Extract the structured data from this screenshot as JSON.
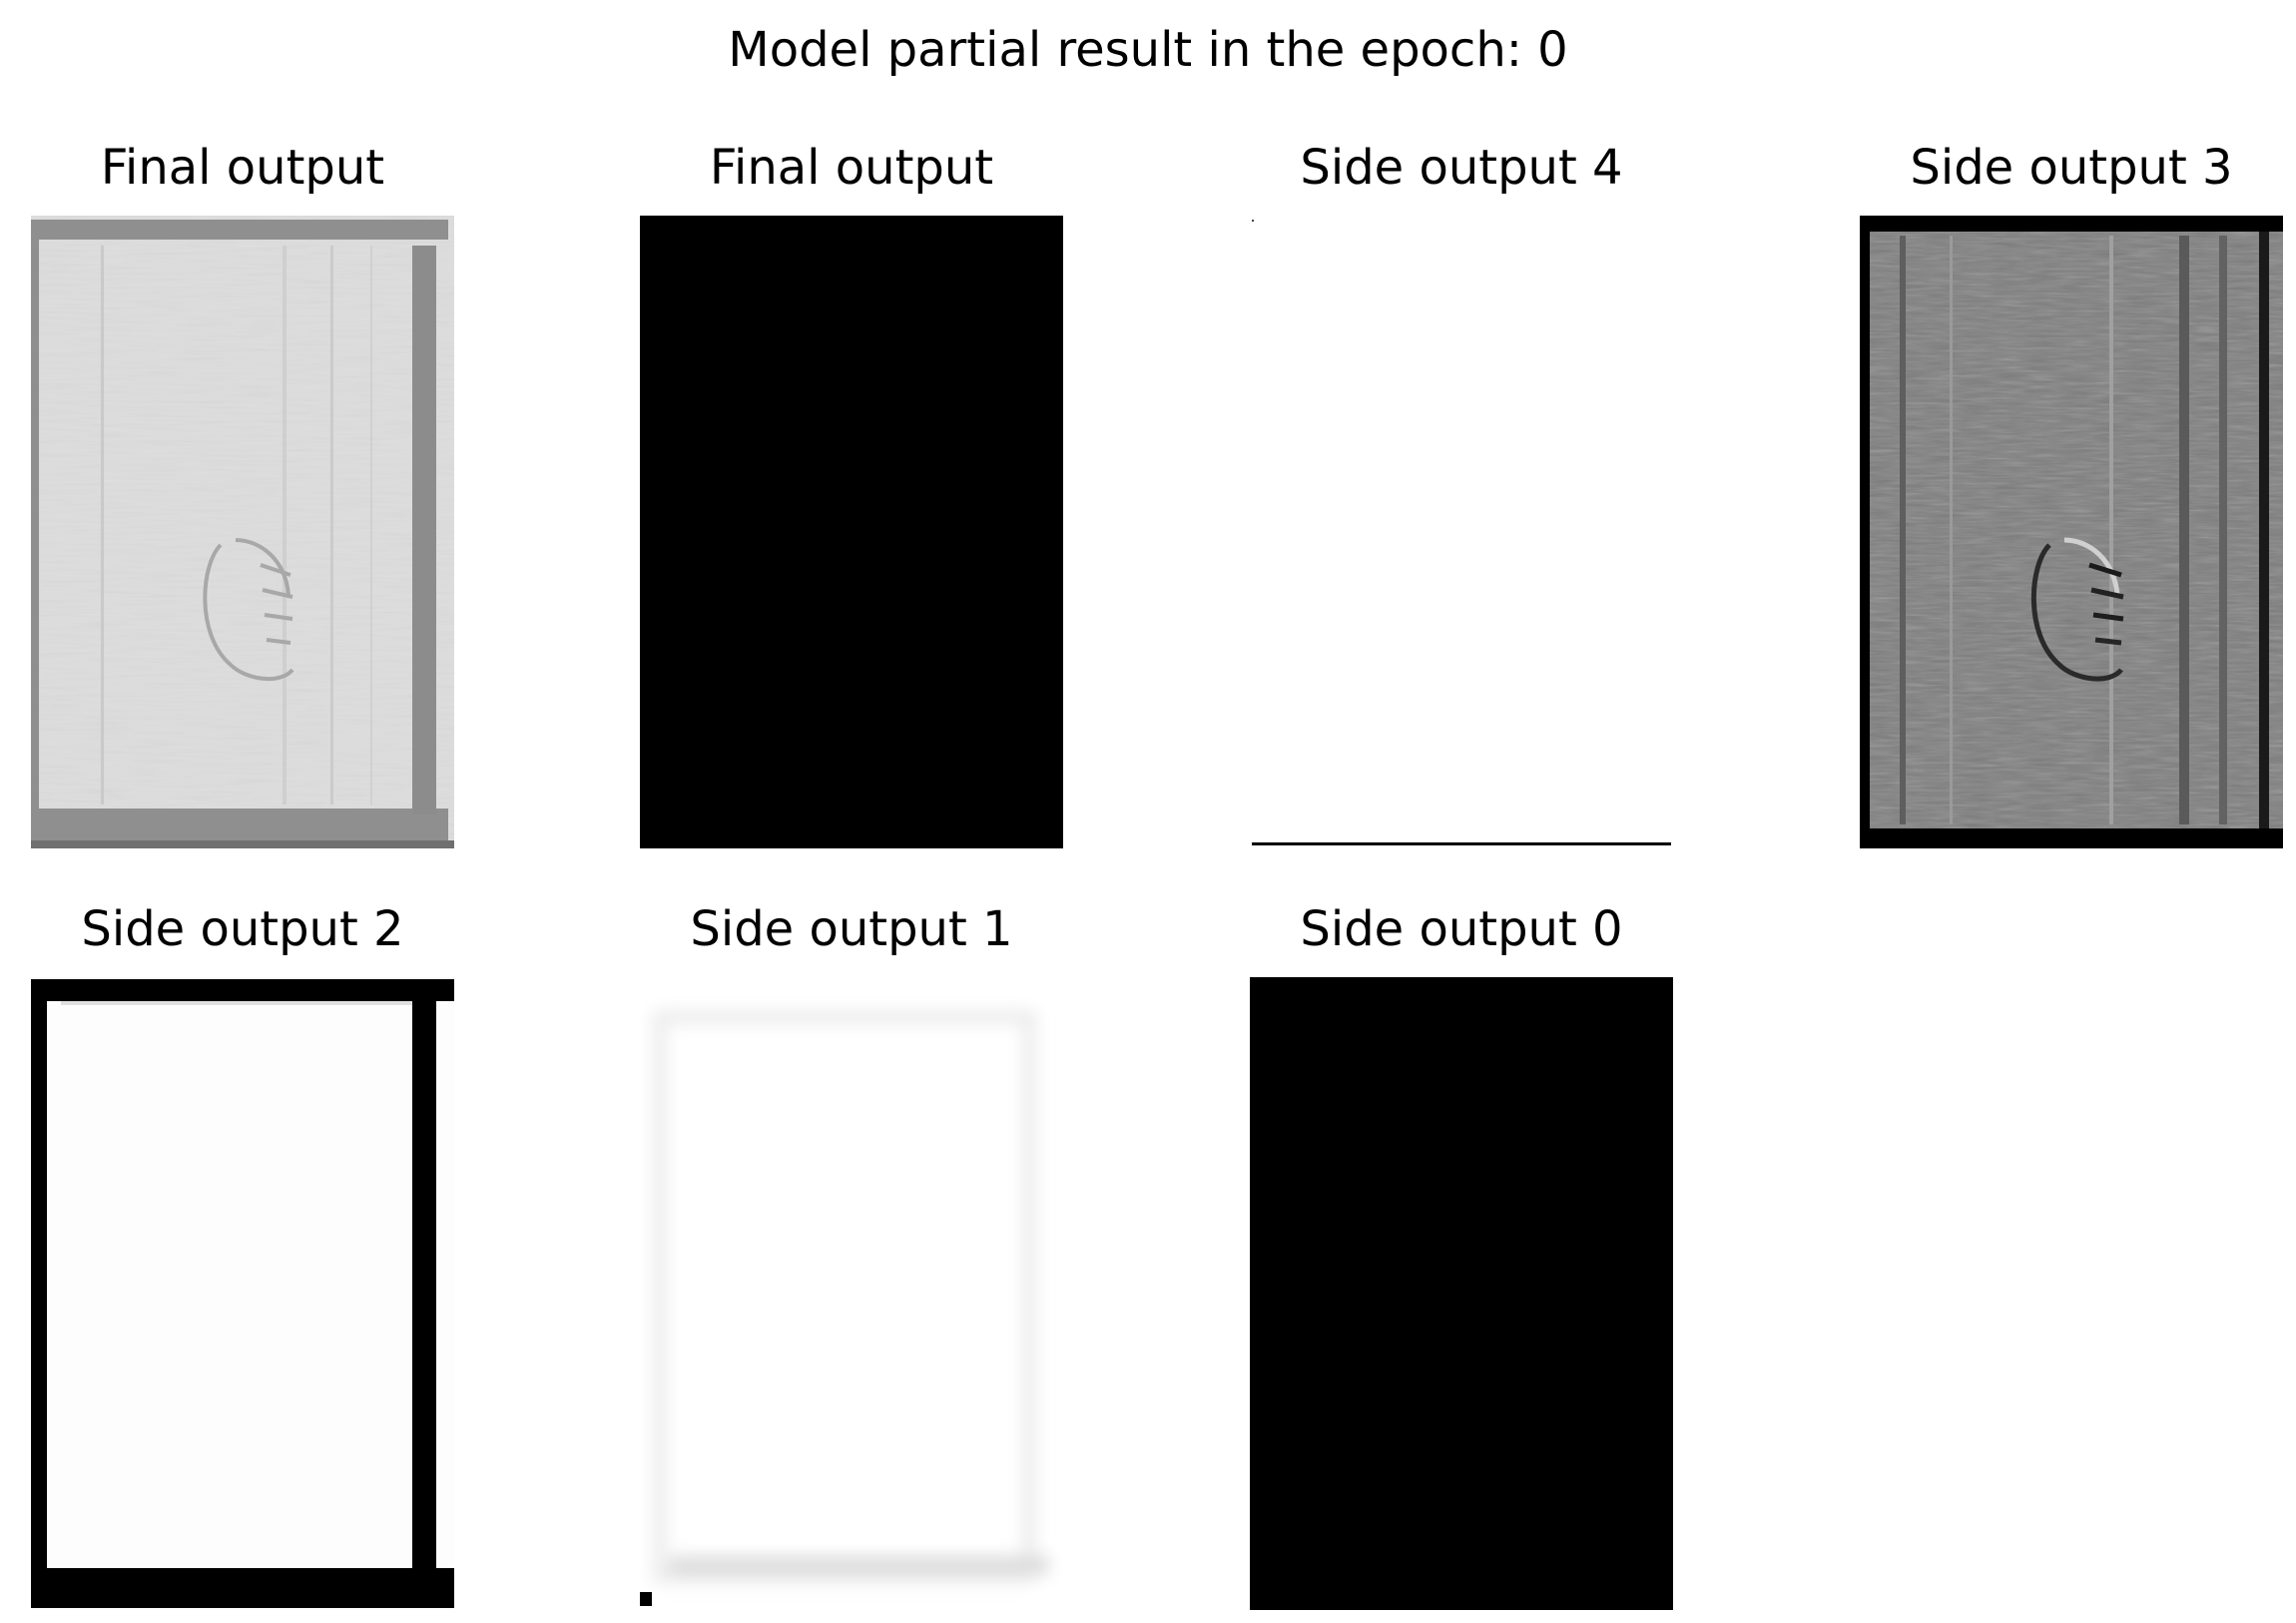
{
  "figure": {
    "title": "Model partial result in the epoch: 0"
  },
  "panels": [
    {
      "id": "p0",
      "title": "Final output",
      "render": "gray-texture"
    },
    {
      "id": "p1",
      "title": "Final output",
      "render": "solid-black"
    },
    {
      "id": "p2",
      "title": "Side output 4",
      "render": "near-white"
    },
    {
      "id": "p3",
      "title": "Side output 3",
      "render": "dark-texture"
    },
    {
      "id": "p4",
      "title": "Side output 2",
      "render": "white-black-frame"
    },
    {
      "id": "p5",
      "title": "Side output 1",
      "render": "faint-white"
    },
    {
      "id": "p6",
      "title": "Side output 0",
      "render": "solid-black"
    }
  ]
}
